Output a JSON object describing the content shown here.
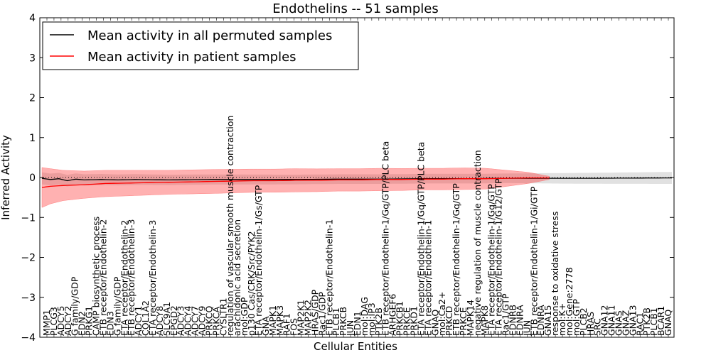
{
  "chart_data": {
    "type": "line",
    "title": "Endothelins -- 51 samples",
    "xlabel": "Cellular Entities",
    "ylabel": "Inferred Activity",
    "ylim": [
      -4,
      4
    ],
    "yticks": [
      -4,
      -3,
      -2,
      -1,
      0,
      1,
      2,
      3,
      4
    ],
    "grid": false,
    "legend_position": "top-left",
    "x_count": 150,
    "series": [
      {
        "name": "Mean activity in all permuted samples",
        "color": "#000000",
        "anchors": [
          [
            0,
            -0.02
          ],
          [
            2,
            -0.05
          ],
          [
            4,
            -0.03
          ],
          [
            6,
            -0.08
          ],
          [
            8,
            -0.04
          ],
          [
            10,
            -0.06
          ],
          [
            14,
            -0.05
          ],
          [
            18,
            -0.06
          ],
          [
            22,
            -0.05
          ],
          [
            30,
            -0.06
          ],
          [
            40,
            -0.05
          ],
          [
            50,
            -0.05
          ],
          [
            60,
            -0.05
          ],
          [
            70,
            -0.04
          ],
          [
            80,
            -0.04
          ],
          [
            90,
            -0.03
          ],
          [
            100,
            -0.03
          ],
          [
            110,
            -0.02
          ],
          [
            120,
            -0.02
          ],
          [
            130,
            -0.02
          ],
          [
            149,
            -0.01
          ]
        ],
        "band_anchors": [
          [
            0,
            0.15
          ],
          [
            10,
            0.14
          ],
          [
            30,
            0.13
          ],
          [
            60,
            0.12
          ],
          [
            80,
            0.12
          ],
          [
            100,
            0.12
          ],
          [
            110,
            0.12
          ],
          [
            120,
            0.13
          ],
          [
            149,
            0.15
          ]
        ]
      },
      {
        "name": "Mean activity in patient samples",
        "color": "#ff0000",
        "anchors": [
          [
            0,
            -0.25
          ],
          [
            2,
            -0.22
          ],
          [
            5,
            -0.2
          ],
          [
            10,
            -0.18
          ],
          [
            15,
            -0.15
          ],
          [
            20,
            -0.14
          ],
          [
            25,
            -0.13
          ],
          [
            30,
            -0.12
          ],
          [
            35,
            -0.11
          ],
          [
            40,
            -0.1
          ],
          [
            45,
            -0.09
          ],
          [
            50,
            -0.08
          ],
          [
            55,
            -0.08
          ],
          [
            60,
            -0.07
          ],
          [
            65,
            -0.07
          ],
          [
            70,
            -0.06
          ],
          [
            75,
            -0.06
          ],
          [
            80,
            -0.05
          ],
          [
            85,
            -0.05
          ],
          [
            90,
            -0.04
          ],
          [
            95,
            -0.04
          ],
          [
            100,
            -0.03
          ],
          [
            105,
            -0.03
          ],
          [
            110,
            -0.02
          ],
          [
            115,
            -0.01
          ],
          [
            120,
            -0.01
          ]
        ],
        "band_anchors": [
          [
            0,
            0.5
          ],
          [
            2,
            0.44
          ],
          [
            5,
            0.38
          ],
          [
            10,
            0.34
          ],
          [
            15,
            0.33
          ],
          [
            20,
            0.32
          ],
          [
            25,
            0.31
          ],
          [
            30,
            0.3
          ],
          [
            40,
            0.3
          ],
          [
            50,
            0.29
          ],
          [
            60,
            0.29
          ],
          [
            70,
            0.28
          ],
          [
            80,
            0.28
          ],
          [
            90,
            0.27
          ],
          [
            100,
            0.27
          ],
          [
            105,
            0.26
          ],
          [
            110,
            0.2
          ],
          [
            115,
            0.14
          ],
          [
            120,
            0.04
          ]
        ]
      }
    ],
    "reference_line": 0,
    "x_tick_labels": [
      "MMP1",
      "PLCG3",
      "ADCY5",
      "ADCY2",
      "G family/GDP",
      "EDN2",
      "PRKG1",
      "CAMP biosynthetic process",
      "ETB receptor/Endothelin-2",
      "EDN3",
      "G family/GDP",
      "ETA receptor/Endothelin-2",
      "ETB receptor/Endothelin-3",
      "ADCY1",
      "COL1A2",
      "ETA receptor/Endothelin-3",
      "ADCY8",
      "SLC9A1",
      "EPGD2",
      "ADCY3",
      "ADCY4",
      "ADCY7",
      "ADCY9",
      "PRKCQ",
      "PRKCA",
      "CYSLTR1",
      "regulation of vascular smooth muscle contraction",
      "arachidonic acid secretion",
      "mol:GDP",
      "p130 Cas/CRK/Src/PYK2",
      "ETA receptor/Endothelin-1/Gs/GTP",
      "GNA",
      "MAPK1",
      "MAPK3",
      "RAF1",
      "FOS",
      "MAP2K1",
      "MAP2K2",
      "HRAS/GDP",
      "Rac1/GDP",
      "ETB receptor/Endothelin-1",
      "PLCB1",
      "PRKCB",
      "JUN",
      "EDN1",
      "mol:DAG",
      "mol:IP3",
      "PTK2B",
      "ETB receptor/Endothelin-1/Gq/GTP/PLC beta",
      "ARHGEF6",
      "PRKCB1",
      "PRKCE",
      "PRKD1",
      "ETA receptor/Endothelin-1/Gq/GTP/PLC beta",
      "ETA receptor/Endothelin-1",
      "GNAQ",
      "mol:Ca2+",
      "PRKCD",
      "ETB receptor/Endothelin-1/Gq/GTP",
      "PRKCE",
      "MAPK14",
      "negative regulation of muscle contraction",
      "MAPK8",
      "ETA receptor/Endothelin-1/Gq/GTP",
      "ETA receptor/Endothelin-1/G12/GTP",
      "Rac1/GTP",
      "EDNRB",
      "EDNRA",
      "JUN",
      "ETB receptor/Endothelin-1/Gi/GTP",
      "EDNRA",
      "GNA15",
      "response to oxidative stress",
      "mol:K+",
      "mol:Gene:2778",
      "mol:GTP",
      "PLCB2",
      "HRAS",
      "SRC",
      "GNA12",
      "GNA11",
      "GNAS",
      "GNAZ",
      "GNA13",
      "RAC1",
      "PTK2B",
      "PLCB1",
      "BCAR1",
      "GNAQ"
    ],
    "legend": [
      {
        "label": "Mean activity in all permuted samples",
        "color": "#000000"
      },
      {
        "label": "Mean activity in patient samples",
        "color": "#ff0000"
      }
    ]
  }
}
